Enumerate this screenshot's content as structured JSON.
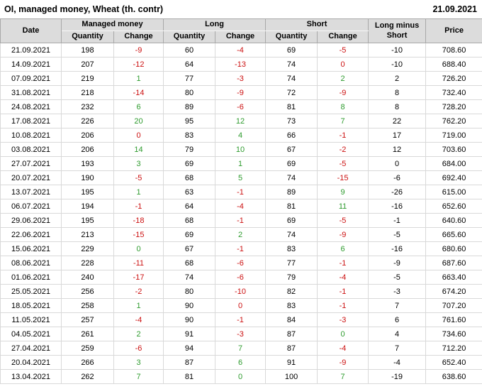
{
  "header": {
    "title": "OI, managed money, Wheat (th. contr)",
    "report_date": "21.09.2021"
  },
  "table": {
    "headers": {
      "date": "Date",
      "managed_money": "Managed money",
      "long": "Long",
      "short": "Short",
      "long_minus_short": "Long minus Short",
      "price": "Price",
      "quantity": "Quantity",
      "change": "Change"
    },
    "rows": [
      {
        "date": "21.09.2021",
        "mm_q": "198",
        "mm_c": "-9",
        "mm_dir": "neg",
        "l_q": "60",
        "l_c": "-4",
        "l_dir": "neg",
        "s_q": "69",
        "s_c": "-5",
        "s_dir": "neg",
        "lms": "-10",
        "price": "708.60"
      },
      {
        "date": "14.09.2021",
        "mm_q": "207",
        "mm_c": "-12",
        "mm_dir": "neg",
        "l_q": "64",
        "l_c": "-13",
        "l_dir": "neg",
        "s_q": "74",
        "s_c": "0",
        "s_dir": "neg",
        "lms": "-10",
        "price": "688.40"
      },
      {
        "date": "07.09.2021",
        "mm_q": "219",
        "mm_c": "1",
        "mm_dir": "pos",
        "l_q": "77",
        "l_c": "-3",
        "l_dir": "neg",
        "s_q": "74",
        "s_c": "2",
        "s_dir": "pos",
        "lms": "2",
        "price": "726.20"
      },
      {
        "date": "31.08.2021",
        "mm_q": "218",
        "mm_c": "-14",
        "mm_dir": "neg",
        "l_q": "80",
        "l_c": "-9",
        "l_dir": "neg",
        "s_q": "72",
        "s_c": "-9",
        "s_dir": "neg",
        "lms": "8",
        "price": "732.40"
      },
      {
        "date": "24.08.2021",
        "mm_q": "232",
        "mm_c": "6",
        "mm_dir": "pos",
        "l_q": "89",
        "l_c": "-6",
        "l_dir": "neg",
        "s_q": "81",
        "s_c": "8",
        "s_dir": "pos",
        "lms": "8",
        "price": "728.20"
      },
      {
        "date": "17.08.2021",
        "mm_q": "226",
        "mm_c": "20",
        "mm_dir": "pos",
        "l_q": "95",
        "l_c": "12",
        "l_dir": "pos",
        "s_q": "73",
        "s_c": "7",
        "s_dir": "pos",
        "lms": "22",
        "price": "762.20"
      },
      {
        "date": "10.08.2021",
        "mm_q": "206",
        "mm_c": "0",
        "mm_dir": "neg",
        "l_q": "83",
        "l_c": "4",
        "l_dir": "pos",
        "s_q": "66",
        "s_c": "-1",
        "s_dir": "neg",
        "lms": "17",
        "price": "719.00"
      },
      {
        "date": "03.08.2021",
        "mm_q": "206",
        "mm_c": "14",
        "mm_dir": "pos",
        "l_q": "79",
        "l_c": "10",
        "l_dir": "pos",
        "s_q": "67",
        "s_c": "-2",
        "s_dir": "neg",
        "lms": "12",
        "price": "703.60"
      },
      {
        "date": "27.07.2021",
        "mm_q": "193",
        "mm_c": "3",
        "mm_dir": "pos",
        "l_q": "69",
        "l_c": "1",
        "l_dir": "pos",
        "s_q": "69",
        "s_c": "-5",
        "s_dir": "neg",
        "lms": "0",
        "price": "684.00"
      },
      {
        "date": "20.07.2021",
        "mm_q": "190",
        "mm_c": "-5",
        "mm_dir": "neg",
        "l_q": "68",
        "l_c": "5",
        "l_dir": "pos",
        "s_q": "74",
        "s_c": "-15",
        "s_dir": "neg",
        "lms": "-6",
        "price": "692.40"
      },
      {
        "date": "13.07.2021",
        "mm_q": "195",
        "mm_c": "1",
        "mm_dir": "pos",
        "l_q": "63",
        "l_c": "-1",
        "l_dir": "neg",
        "s_q": "89",
        "s_c": "9",
        "s_dir": "pos",
        "lms": "-26",
        "price": "615.00"
      },
      {
        "date": "06.07.2021",
        "mm_q": "194",
        "mm_c": "-1",
        "mm_dir": "neg",
        "l_q": "64",
        "l_c": "-4",
        "l_dir": "neg",
        "s_q": "81",
        "s_c": "11",
        "s_dir": "pos",
        "lms": "-16",
        "price": "652.60"
      },
      {
        "date": "29.06.2021",
        "mm_q": "195",
        "mm_c": "-18",
        "mm_dir": "neg",
        "l_q": "68",
        "l_c": "-1",
        "l_dir": "neg",
        "s_q": "69",
        "s_c": "-5",
        "s_dir": "neg",
        "lms": "-1",
        "price": "640.60"
      },
      {
        "date": "22.06.2021",
        "mm_q": "213",
        "mm_c": "-15",
        "mm_dir": "neg",
        "l_q": "69",
        "l_c": "2",
        "l_dir": "pos",
        "s_q": "74",
        "s_c": "-9",
        "s_dir": "neg",
        "lms": "-5",
        "price": "665.60"
      },
      {
        "date": "15.06.2021",
        "mm_q": "229",
        "mm_c": "0",
        "mm_dir": "pos",
        "l_q": "67",
        "l_c": "-1",
        "l_dir": "neg",
        "s_q": "83",
        "s_c": "6",
        "s_dir": "pos",
        "lms": "-16",
        "price": "680.60"
      },
      {
        "date": "08.06.2021",
        "mm_q": "228",
        "mm_c": "-11",
        "mm_dir": "neg",
        "l_q": "68",
        "l_c": "-6",
        "l_dir": "neg",
        "s_q": "77",
        "s_c": "-1",
        "s_dir": "neg",
        "lms": "-9",
        "price": "687.60"
      },
      {
        "date": "01.06.2021",
        "mm_q": "240",
        "mm_c": "-17",
        "mm_dir": "neg",
        "l_q": "74",
        "l_c": "-6",
        "l_dir": "neg",
        "s_q": "79",
        "s_c": "-4",
        "s_dir": "neg",
        "lms": "-5",
        "price": "663.40"
      },
      {
        "date": "25.05.2021",
        "mm_q": "256",
        "mm_c": "-2",
        "mm_dir": "neg",
        "l_q": "80",
        "l_c": "-10",
        "l_dir": "neg",
        "s_q": "82",
        "s_c": "-1",
        "s_dir": "neg",
        "lms": "-3",
        "price": "674.20"
      },
      {
        "date": "18.05.2021",
        "mm_q": "258",
        "mm_c": "1",
        "mm_dir": "pos",
        "l_q": "90",
        "l_c": "0",
        "l_dir": "neg",
        "s_q": "83",
        "s_c": "-1",
        "s_dir": "neg",
        "lms": "7",
        "price": "707.20"
      },
      {
        "date": "11.05.2021",
        "mm_q": "257",
        "mm_c": "-4",
        "mm_dir": "neg",
        "l_q": "90",
        "l_c": "-1",
        "l_dir": "neg",
        "s_q": "84",
        "s_c": "-3",
        "s_dir": "neg",
        "lms": "6",
        "price": "761.60"
      },
      {
        "date": "04.05.2021",
        "mm_q": "261",
        "mm_c": "2",
        "mm_dir": "pos",
        "l_q": "91",
        "l_c": "-3",
        "l_dir": "neg",
        "s_q": "87",
        "s_c": "0",
        "s_dir": "pos",
        "lms": "4",
        "price": "734.60"
      },
      {
        "date": "27.04.2021",
        "mm_q": "259",
        "mm_c": "-6",
        "mm_dir": "neg",
        "l_q": "94",
        "l_c": "7",
        "l_dir": "pos",
        "s_q": "87",
        "s_c": "-4",
        "s_dir": "neg",
        "lms": "7",
        "price": "712.20"
      },
      {
        "date": "20.04.2021",
        "mm_q": "266",
        "mm_c": "3",
        "mm_dir": "pos",
        "l_q": "87",
        "l_c": "6",
        "l_dir": "pos",
        "s_q": "91",
        "s_c": "-9",
        "s_dir": "neg",
        "lms": "-4",
        "price": "652.40"
      },
      {
        "date": "13.04.2021",
        "mm_q": "262",
        "mm_c": "7",
        "mm_dir": "pos",
        "l_q": "81",
        "l_c": "0",
        "l_dir": "pos",
        "s_q": "100",
        "s_c": "7",
        "s_dir": "pos",
        "lms": "-19",
        "price": "638.60"
      }
    ]
  },
  "colors": {
    "positive_change": "#2e9b2e",
    "negative_change": "#cc1111",
    "header_background": "#dcdcdc",
    "header_grid_line": "#a8a8a8",
    "grid_line": "#d9d9d9",
    "text": "#000000"
  },
  "chart_data": {
    "type": "table",
    "title": "OI, managed money, Wheat (th. contr)",
    "as_of_date": "21.09.2021",
    "columns": [
      "Date",
      "Managed money Quantity",
      "Managed money Change",
      "Long Quantity",
      "Long Change",
      "Short Quantity",
      "Short Change",
      "Long minus Short",
      "Price"
    ],
    "rows": [
      [
        "21.09.2021",
        198,
        -9,
        60,
        -4,
        69,
        -5,
        -10,
        708.6
      ],
      [
        "14.09.2021",
        207,
        -12,
        64,
        -13,
        74,
        0,
        -10,
        688.4
      ],
      [
        "07.09.2021",
        219,
        1,
        77,
        -3,
        74,
        2,
        2,
        726.2
      ],
      [
        "31.08.2021",
        218,
        -14,
        80,
        -9,
        72,
        -9,
        8,
        732.4
      ],
      [
        "24.08.2021",
        232,
        6,
        89,
        -6,
        81,
        8,
        8,
        728.2
      ],
      [
        "17.08.2021",
        226,
        20,
        95,
        12,
        73,
        7,
        22,
        762.2
      ],
      [
        "10.08.2021",
        206,
        0,
        83,
        4,
        66,
        -1,
        17,
        719.0
      ],
      [
        "03.08.2021",
        206,
        14,
        79,
        10,
        67,
        -2,
        12,
        703.6
      ],
      [
        "27.07.2021",
        193,
        3,
        69,
        1,
        69,
        -5,
        0,
        684.0
      ],
      [
        "20.07.2021",
        190,
        -5,
        68,
        5,
        74,
        -15,
        -6,
        692.4
      ],
      [
        "13.07.2021",
        195,
        1,
        63,
        -1,
        89,
        9,
        -26,
        615.0
      ],
      [
        "06.07.2021",
        194,
        -1,
        64,
        -4,
        81,
        11,
        -16,
        652.6
      ],
      [
        "29.06.2021",
        195,
        -18,
        68,
        -1,
        69,
        -5,
        -1,
        640.6
      ],
      [
        "22.06.2021",
        213,
        -15,
        69,
        2,
        74,
        -9,
        -5,
        665.6
      ],
      [
        "15.06.2021",
        229,
        0,
        67,
        -1,
        83,
        6,
        -16,
        680.6
      ],
      [
        "08.06.2021",
        228,
        -11,
        68,
        -6,
        77,
        -1,
        -9,
        687.6
      ],
      [
        "01.06.2021",
        240,
        -17,
        74,
        -6,
        79,
        -4,
        -5,
        663.4
      ],
      [
        "25.05.2021",
        256,
        -2,
        80,
        -10,
        82,
        -1,
        -3,
        674.2
      ],
      [
        "18.05.2021",
        258,
        1,
        90,
        0,
        83,
        -1,
        7,
        707.2
      ],
      [
        "11.05.2021",
        257,
        -4,
        90,
        -1,
        84,
        -3,
        6,
        761.6
      ],
      [
        "04.05.2021",
        261,
        2,
        91,
        -3,
        87,
        0,
        4,
        734.6
      ],
      [
        "27.04.2021",
        259,
        -6,
        94,
        7,
        87,
        -4,
        7,
        712.2
      ],
      [
        "20.04.2021",
        266,
        3,
        87,
        6,
        91,
        -9,
        -4,
        652.4
      ],
      [
        "13.04.2021",
        262,
        7,
        81,
        0,
        100,
        7,
        -19,
        638.6
      ]
    ]
  }
}
